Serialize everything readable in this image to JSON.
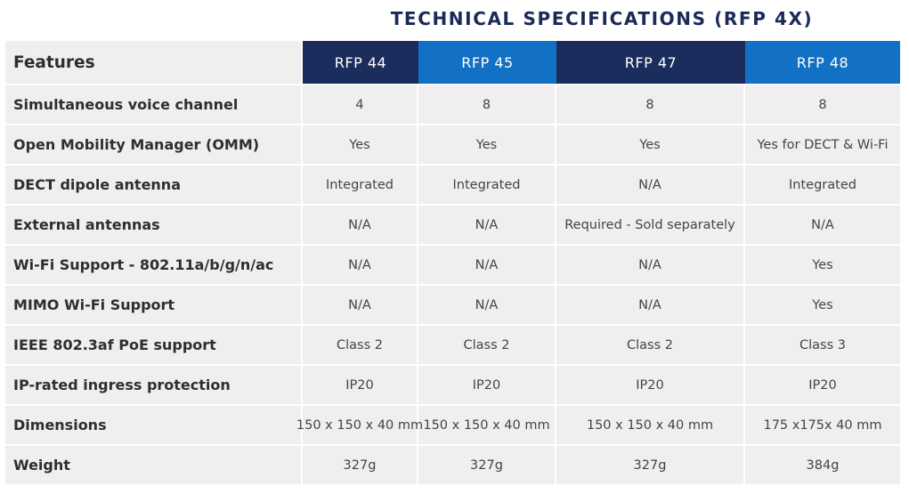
{
  "title": "TECHNICAL SPECIFICATIONS (RFP 4X)",
  "colors": {
    "title": "#1b2a56",
    "header_dark": "#1b2d5c",
    "header_blue": "#1271c4",
    "row_bg": "#efefef"
  },
  "table": {
    "feature_header": "Features",
    "columns": [
      {
        "label": "RFP 44",
        "color": "#1b2d5c"
      },
      {
        "label": "RFP 45",
        "color": "#1271c4"
      },
      {
        "label": "RFP 47",
        "color": "#1b2d5c"
      },
      {
        "label": "RFP 48",
        "color": "#1271c4"
      }
    ],
    "rows": [
      {
        "feature": "Simultaneous voice channel",
        "values": [
          "4",
          "8",
          "8",
          "8"
        ]
      },
      {
        "feature": "Open Mobility Manager (OMM)",
        "values": [
          "Yes",
          "Yes",
          "Yes",
          "Yes for DECT & Wi-Fi"
        ]
      },
      {
        "feature": "DECT dipole antenna",
        "values": [
          "Integrated",
          "Integrated",
          "N/A",
          "Integrated"
        ]
      },
      {
        "feature": "External antennas",
        "values": [
          "N/A",
          "N/A",
          "Required - Sold separately",
          "N/A"
        ]
      },
      {
        "feature": "Wi-Fi Support - 802.11a/b/g/n/ac",
        "values": [
          "N/A",
          "N/A",
          "N/A",
          "Yes"
        ]
      },
      {
        "feature": "MIMO Wi-Fi Support",
        "values": [
          "N/A",
          "N/A",
          "N/A",
          "Yes"
        ]
      },
      {
        "feature": "IEEE 802.3af PoE support",
        "values": [
          "Class 2",
          "Class 2",
          "Class 2",
          "Class 3"
        ]
      },
      {
        "feature": "IP-rated ingress protection",
        "values": [
          "IP20",
          "IP20",
          "IP20",
          "IP20"
        ]
      },
      {
        "feature": "Dimensions",
        "values": [
          "150 x 150 x 40 mm",
          "150 x 150 x 40 mm",
          "150 x 150 x 40 mm",
          "175 x175x 40 mm"
        ]
      },
      {
        "feature": "Weight",
        "values": [
          "327g",
          "327g",
          "327g",
          "384g"
        ]
      }
    ]
  }
}
